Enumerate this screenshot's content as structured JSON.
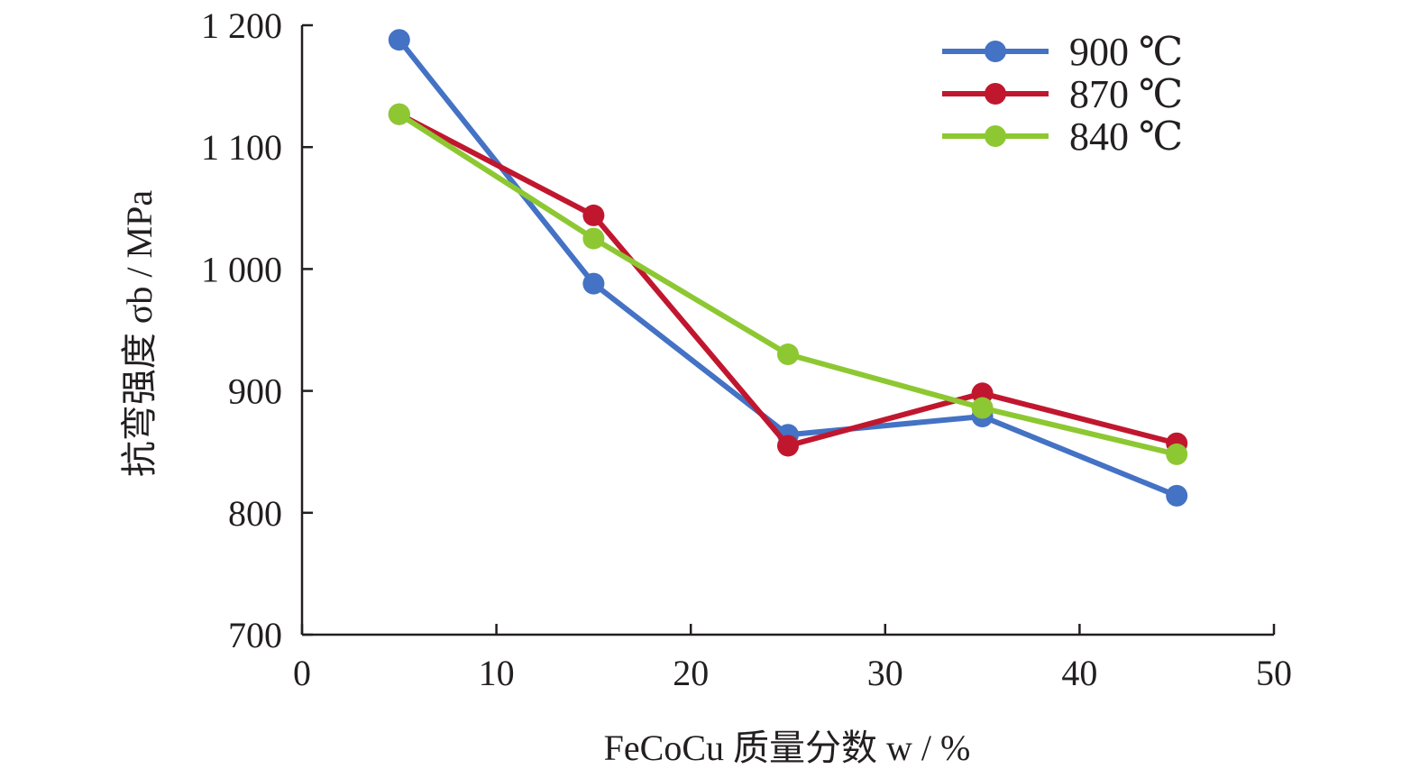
{
  "chart_data": {
    "type": "line",
    "xlabel": "FeCoCu 质量分数 w / %",
    "ylabel": "抗弯强度 σb / MPa",
    "xlim": [
      0,
      50
    ],
    "ylim": [
      700,
      1200
    ],
    "x_ticks": [
      "0",
      "10",
      "20",
      "30",
      "40",
      "50"
    ],
    "y_ticks": [
      "700",
      "800",
      "900",
      "1 000",
      "1 100",
      "1 200"
    ],
    "grid": false,
    "legend_position": "top-right",
    "series": [
      {
        "name": "900 ℃",
        "color": "#4472c4",
        "x": [
          5,
          15,
          25,
          35,
          45
        ],
        "y": [
          1188,
          988,
          864,
          879,
          814
        ]
      },
      {
        "name": "870 ℃",
        "color": "#c0172f",
        "x": [
          5,
          15,
          25,
          35,
          45
        ],
        "y": [
          1127,
          1044,
          855,
          898,
          857
        ]
      },
      {
        "name": "840 ℃",
        "color": "#8dc832",
        "x": [
          5,
          15,
          25,
          35,
          45
        ],
        "y": [
          1127,
          1025,
          930,
          886,
          848
        ]
      }
    ]
  }
}
